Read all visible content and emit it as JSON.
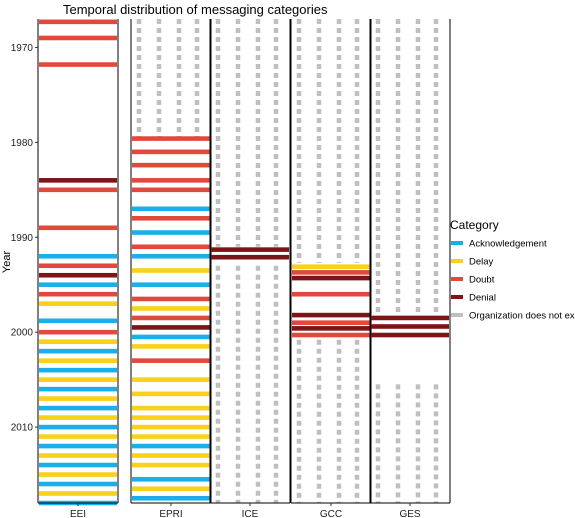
{
  "chart_data": {
    "type": "bar",
    "title": "Temporal distribution of messaging categories",
    "xlabel": "",
    "ylabel": "Year",
    "ylim": [
      1967,
      2018
    ],
    "y_reversed": true,
    "y_ticks": [
      1970,
      1980,
      1990,
      2000,
      2010
    ],
    "panels": [
      "EEI",
      "EPRI",
      "ICE",
      "GCC",
      "GES"
    ],
    "legend": {
      "title": "Category",
      "position": "right",
      "items": [
        {
          "key": "acknowledgement",
          "label": "Acknowledgement",
          "color": "#1aafea"
        },
        {
          "key": "delay",
          "label": "Delay",
          "color": "#f9d01a"
        },
        {
          "key": "doubt",
          "label": "Doubt",
          "color": "#e2493d"
        },
        {
          "key": "denial",
          "label": "Denial",
          "color": "#7d1416"
        },
        {
          "key": "none",
          "label": "Organization does not exist",
          "color": "#bfbfbf"
        }
      ]
    },
    "series": [
      {
        "panel": "EEI",
        "nonexistent": [],
        "records": [
          {
            "year": 1967.3,
            "cat": "doubt"
          },
          {
            "year": 1969.0,
            "cat": "doubt"
          },
          {
            "year": 1971.8,
            "cat": "doubt"
          },
          {
            "year": 1984.0,
            "cat": "denial"
          },
          {
            "year": 1985.0,
            "cat": "doubt"
          },
          {
            "year": 1989.0,
            "cat": "doubt"
          },
          {
            "year": 1992.0,
            "cat": "acknowledgement"
          },
          {
            "year": 1993.0,
            "cat": "doubt"
          },
          {
            "year": 1994.0,
            "cat": "denial"
          },
          {
            "year": 1995.0,
            "cat": "acknowledgement"
          },
          {
            "year": 1996.0,
            "cat": "doubt"
          },
          {
            "year": 1997.0,
            "cat": "delay"
          },
          {
            "year": 1998.8,
            "cat": "acknowledgement"
          },
          {
            "year": 2000.0,
            "cat": "doubt"
          },
          {
            "year": 2001.0,
            "cat": "delay"
          },
          {
            "year": 2002.0,
            "cat": "acknowledgement"
          },
          {
            "year": 2003.0,
            "cat": "delay"
          },
          {
            "year": 2004.0,
            "cat": "acknowledgement"
          },
          {
            "year": 2005.0,
            "cat": "delay"
          },
          {
            "year": 2006.0,
            "cat": "acknowledgement"
          },
          {
            "year": 2007.0,
            "cat": "delay"
          },
          {
            "year": 2008.0,
            "cat": "acknowledgement"
          },
          {
            "year": 2009.0,
            "cat": "delay"
          },
          {
            "year": 2010.0,
            "cat": "acknowledgement"
          },
          {
            "year": 2011.0,
            "cat": "delay"
          },
          {
            "year": 2012.0,
            "cat": "acknowledgement"
          },
          {
            "year": 2013.0,
            "cat": "delay"
          },
          {
            "year": 2014.0,
            "cat": "acknowledgement"
          },
          {
            "year": 2015.0,
            "cat": "delay"
          },
          {
            "year": 2016.0,
            "cat": "acknowledgement"
          },
          {
            "year": 2017.0,
            "cat": "delay"
          },
          {
            "year": 2018.0,
            "cat": "acknowledgement"
          }
        ]
      },
      {
        "panel": "EPRI",
        "nonexistent": [
          [
            1967,
            1979.6
          ]
        ],
        "records": [
          {
            "year": 1979.6,
            "cat": "doubt"
          },
          {
            "year": 1981.0,
            "cat": "doubt"
          },
          {
            "year": 1982.4,
            "cat": "doubt"
          },
          {
            "year": 1984.0,
            "cat": "doubt"
          },
          {
            "year": 1985.0,
            "cat": "doubt"
          },
          {
            "year": 1987.0,
            "cat": "acknowledgement"
          },
          {
            "year": 1988.0,
            "cat": "doubt"
          },
          {
            "year": 1989.5,
            "cat": "acknowledgement"
          },
          {
            "year": 1991.0,
            "cat": "doubt"
          },
          {
            "year": 1992.0,
            "cat": "acknowledgement"
          },
          {
            "year": 1993.5,
            "cat": "delay"
          },
          {
            "year": 1995.0,
            "cat": "acknowledgement"
          },
          {
            "year": 1996.5,
            "cat": "doubt"
          },
          {
            "year": 1997.5,
            "cat": "delay"
          },
          {
            "year": 1998.5,
            "cat": "doubt"
          },
          {
            "year": 1999.5,
            "cat": "denial"
          },
          {
            "year": 2000.5,
            "cat": "acknowledgement"
          },
          {
            "year": 2001.5,
            "cat": "delay"
          },
          {
            "year": 2003.0,
            "cat": "doubt"
          },
          {
            "year": 2005.0,
            "cat": "delay"
          },
          {
            "year": 2006.5,
            "cat": "delay"
          },
          {
            "year": 2008.0,
            "cat": "delay"
          },
          {
            "year": 2009.0,
            "cat": "delay"
          },
          {
            "year": 2010.0,
            "cat": "delay"
          },
          {
            "year": 2011.0,
            "cat": "delay"
          },
          {
            "year": 2012.0,
            "cat": "acknowledgement"
          },
          {
            "year": 2013.0,
            "cat": "delay"
          },
          {
            "year": 2014.0,
            "cat": "delay"
          },
          {
            "year": 2015.5,
            "cat": "acknowledgement"
          },
          {
            "year": 2016.5,
            "cat": "delay"
          },
          {
            "year": 2017.5,
            "cat": "acknowledgement"
          }
        ]
      },
      {
        "panel": "ICE",
        "nonexistent": [
          [
            1967,
            1991
          ],
          [
            1993,
            2018
          ]
        ],
        "records": [
          {
            "year": 1991.3,
            "cat": "denial"
          },
          {
            "year": 1992.1,
            "cat": "denial"
          }
        ]
      },
      {
        "panel": "GCC",
        "nonexistent": [
          [
            1967,
            1992.7
          ],
          [
            2000.8,
            2018
          ]
        ],
        "records": [
          {
            "year": 1993.1,
            "cat": "delay"
          },
          {
            "year": 1993.7,
            "cat": "doubt"
          },
          {
            "year": 1994.3,
            "cat": "denial"
          },
          {
            "year": 1996.0,
            "cat": "doubt"
          },
          {
            "year": 1998.2,
            "cat": "denial"
          },
          {
            "year": 1999.0,
            "cat": "doubt"
          },
          {
            "year": 1999.6,
            "cat": "denial"
          },
          {
            "year": 2000.3,
            "cat": "doubt"
          }
        ]
      },
      {
        "panel": "GES",
        "nonexistent": [
          [
            1967,
            1998
          ],
          [
            2005.5,
            2018
          ]
        ],
        "records": [
          {
            "year": 1998.5,
            "cat": "denial"
          },
          {
            "year": 1999.4,
            "cat": "denial"
          },
          {
            "year": 2000.3,
            "cat": "denial"
          }
        ]
      }
    ]
  }
}
